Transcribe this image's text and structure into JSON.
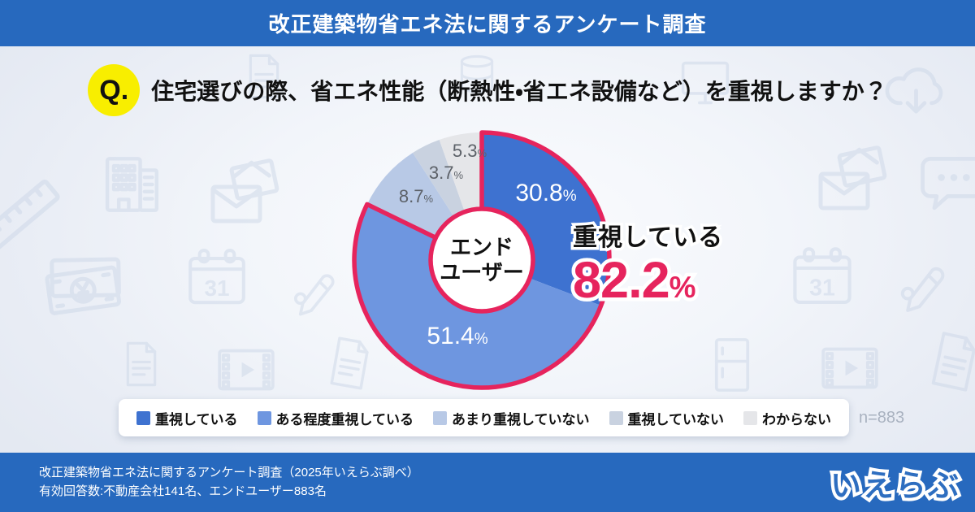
{
  "banner": {
    "title": "改正建築物省エネ法に関するアンケート調査"
  },
  "question": {
    "badge": "Q.",
    "text": "住宅選びの際、省エネ性能（断熱性・省エネ設備など）を重視しますか？"
  },
  "chart_data": {
    "type": "pie",
    "title": "住宅選びの際、省エネ性能（断熱性・省エネ設備など）を重視しますか？",
    "center_label": [
      "エンド",
      "ユーザー"
    ],
    "unit": "%",
    "segments": [
      {
        "label": "重視している",
        "value": 30.8,
        "color": "#3e72d0"
      },
      {
        "label": "ある程度重視している",
        "value": 51.4,
        "color": "#6e96e0"
      },
      {
        "label": "あまり重視していない",
        "value": 8.7,
        "color": "#b8c9e6"
      },
      {
        "label": "重視していない",
        "value": 3.7,
        "color": "#c9d2e0"
      },
      {
        "label": "わからない",
        "value": 5.3,
        "color": "#e5e6e9"
      }
    ],
    "highlight": {
      "label": "重視している",
      "value": "82.2",
      "unit": "%",
      "covers_segments": [
        0,
        1
      ]
    },
    "n_label": "n=883",
    "legend_position": "bottom",
    "start_angle_deg": -90,
    "direction": "clockwise"
  },
  "footer": {
    "line1": "改正建築物省エネ法に関するアンケート調査（2025年いえらぶ調べ）",
    "line2": "有効回答数:不動産会社141名、エンドユーザー883名",
    "logo": "いえらぶ"
  },
  "colors": {
    "banner_blue": "#2769be",
    "accent_pink": "#e6245d",
    "badge_yellow": "#f8ee00",
    "bg_icon": "#ccd7e8"
  }
}
